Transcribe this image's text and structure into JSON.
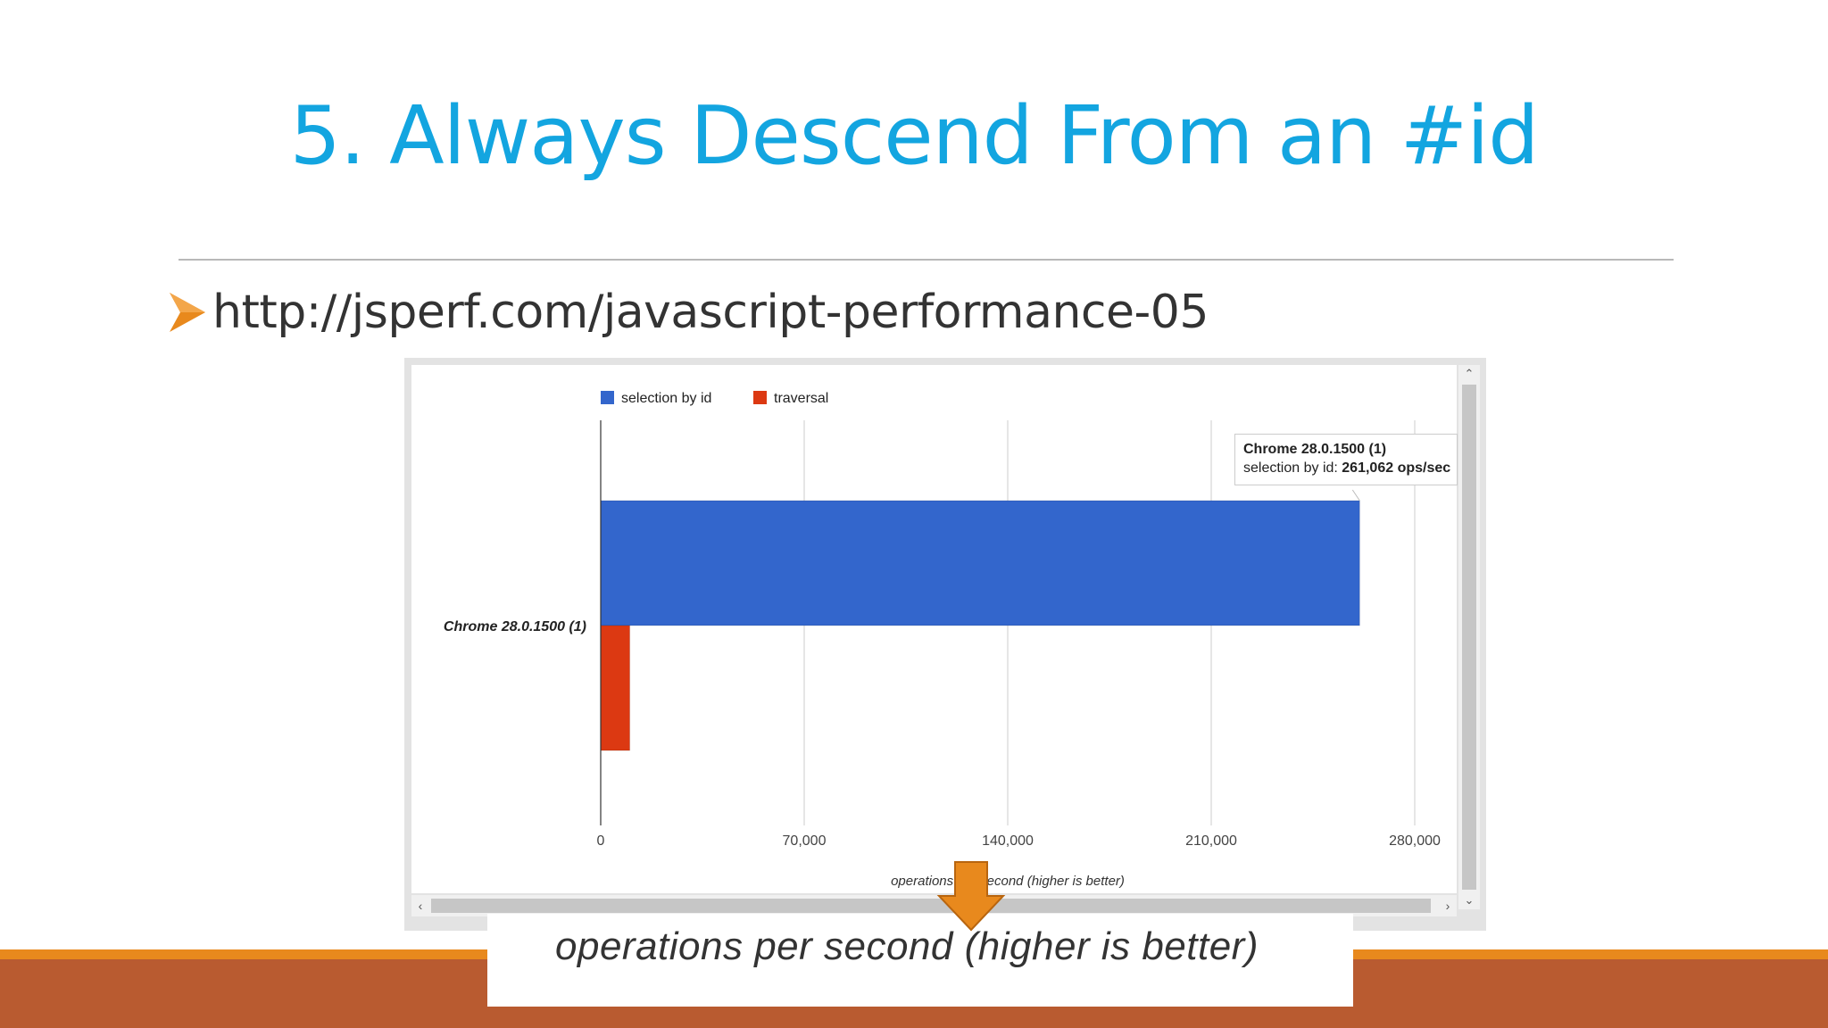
{
  "slide": {
    "title": "5. Always Descend From an #id",
    "bullet": "http://jsperf.com/javascript-performance-05",
    "accent_color": "#13a5e0",
    "band_colors": [
      "#e8891d",
      "#b95b30"
    ]
  },
  "chart_data": {
    "type": "bar",
    "orientation": "horizontal",
    "categories": [
      "Chrome 28.0.1500 (1)"
    ],
    "series": [
      {
        "name": "selection by id",
        "values": [
          261062
        ],
        "color": "#3366cc"
      },
      {
        "name": "traversal",
        "values": [
          10000
        ],
        "color": "#dc3912"
      }
    ],
    "xlabel": "operations per second (higher is better)",
    "xlim": [
      0,
      300000
    ],
    "xticks": [
      "0",
      "70,000",
      "140,000",
      "210,000",
      "280,000"
    ],
    "xtick_values": [
      0,
      70000,
      140000,
      210000,
      280000
    ],
    "grid": true,
    "legend": "top-left"
  },
  "tooltip": {
    "title": "Chrome 28.0.1500 (1)",
    "series_label": "selection by id: ",
    "value": "261,062 ops/sec"
  },
  "callout": {
    "text": "operations per second (higher is better)",
    "arrow_color": "#e8891d"
  },
  "icons": {
    "bullet": "arrowhead-bullet-icon",
    "scroll_up": "chevron-up-icon",
    "scroll_down": "chevron-down-icon",
    "scroll_left": "chevron-left-icon",
    "scroll_right": "chevron-right-icon",
    "callout_arrow": "down-arrow-icon"
  }
}
